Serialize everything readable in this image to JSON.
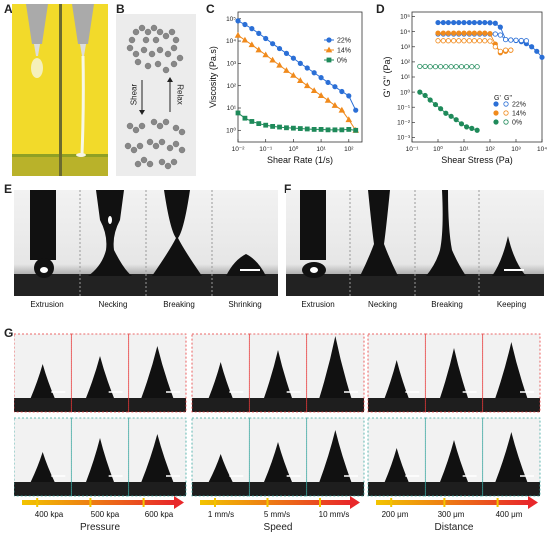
{
  "panels": {
    "a": "A",
    "b": "B",
    "c": "C",
    "d": "D",
    "e": "E",
    "f": "F",
    "g": "G"
  },
  "panel_b": {
    "top_label": "Shear",
    "right_label": "Relax"
  },
  "panel_e": {
    "captions": [
      "Extrusion",
      "Necking",
      "Breaking",
      "Shrinking"
    ]
  },
  "panel_f": {
    "captions": [
      "Extrusion",
      "Necking",
      "Breaking",
      "Keeping"
    ]
  },
  "panel_g": {
    "groups": [
      {
        "name": "Pressure",
        "ticks": [
          "400 kpa",
          "500 kpa",
          "600 kpa"
        ]
      },
      {
        "name": "Speed",
        "ticks": [
          "1 mm/s",
          "5 mm/s",
          "10 mm/s"
        ]
      },
      {
        "name": "Distance",
        "ticks": [
          "200 μm",
          "300 μm",
          "400 μm"
        ]
      }
    ],
    "colors": {
      "red": "#e83a3a",
      "teal": "#3aa7a0",
      "arrow_start": "#f2c400",
      "arrow_end": "#e8282a"
    }
  },
  "chart_data": [
    {
      "type": "line",
      "xlabel": "Shear Rate (1/s)",
      "ylabel": "Viscosity (Pa.s)",
      "xscale": "log",
      "yscale": "log",
      "xlim": [
        0.01,
        300
      ],
      "ylim": [
        0.3,
        200000
      ],
      "xticks": [
        "10⁻²",
        "10⁻¹",
        "10⁰",
        "10¹",
        "10²"
      ],
      "yticks": [
        "10⁰",
        "10¹",
        "10²",
        "10³",
        "10⁴",
        "10⁵"
      ],
      "legend": "top-right",
      "series": [
        {
          "name": "22%",
          "color": "#2b6fd6",
          "marker": "circle",
          "x": [
            0.01,
            0.0178,
            0.0316,
            0.0562,
            0.1,
            0.178,
            0.316,
            0.562,
            1,
            1.78,
            3.16,
            5.62,
            10,
            17.8,
            31.6,
            56.2,
            100,
            178
          ],
          "y": [
            80000,
            55000,
            36000,
            22000,
            13000,
            7600,
            4600,
            2800,
            1700,
            1000,
            620,
            380,
            230,
            140,
            90,
            55,
            35,
            8
          ]
        },
        {
          "name": "14%",
          "color": "#f08a1c",
          "marker": "triangle",
          "x": [
            0.01,
            0.0178,
            0.0316,
            0.0562,
            0.1,
            0.178,
            0.316,
            0.562,
            1,
            1.78,
            3.16,
            5.62,
            10,
            17.8,
            31.6,
            56.2,
            100,
            178
          ],
          "y": [
            18000,
            11000,
            6800,
            4000,
            2400,
            1400,
            820,
            480,
            290,
            170,
            100,
            60,
            36,
            22,
            13,
            8,
            3,
            1
          ]
        },
        {
          "name": "0%",
          "color": "#1f8a5a",
          "marker": "square",
          "x": [
            0.01,
            0.0178,
            0.0316,
            0.0562,
            0.1,
            0.178,
            0.316,
            0.562,
            1,
            1.78,
            3.16,
            5.62,
            10,
            17.8,
            31.6,
            56.2,
            100,
            178
          ],
          "y": [
            6,
            3.5,
            2.5,
            2,
            1.7,
            1.5,
            1.4,
            1.3,
            1.25,
            1.2,
            1.15,
            1.1,
            1.1,
            1.05,
            1.05,
            1.05,
            1.1,
            1
          ]
        }
      ]
    },
    {
      "type": "scatter",
      "xlabel": "Shear Stress (Pa)",
      "ylabel": "G' G\" (Pa)",
      "xscale": "log",
      "yscale": "log",
      "xlim": [
        0.1,
        10000
      ],
      "ylim": [
        0.0005,
        200000
      ],
      "xticks": [
        "10⁻¹",
        "10⁰",
        "10¹",
        "10²",
        "10³",
        "10⁴"
      ],
      "yticks": [
        "10⁻³",
        "10⁻²",
        "10⁻¹",
        "10⁰",
        "10¹",
        "10²",
        "10³",
        "10⁴",
        "10⁵"
      ],
      "legend": "bottom-right",
      "legend_header": [
        "G'",
        "G\""
      ],
      "series": [
        {
          "name": "22%",
          "color": "#2b6fd6",
          "gp_x": [
            1,
            1.6,
            2.5,
            4,
            6.3,
            10,
            16,
            25,
            40,
            63,
            100,
            160,
            250,
            400,
            630,
            1000,
            1600,
            2500,
            4000,
            6300,
            10000
          ],
          "gp_y": [
            40000,
            40000,
            40000,
            40000,
            40000,
            40000,
            40000,
            40000,
            40000,
            40000,
            39000,
            36000,
            20000,
            3000,
            2800,
            2600,
            2200,
            1600,
            1000,
            500,
            200
          ],
          "gpp_x": [
            1,
            1.6,
            2.5,
            4,
            6.3,
            10,
            16,
            25,
            40,
            63,
            100,
            160,
            250,
            400,
            630,
            1000,
            1600,
            2500
          ],
          "gpp_y": [
            7000,
            7000,
            7000,
            7000,
            7000,
            7000,
            7000,
            7000,
            7000,
            7000,
            7000,
            7000,
            6000,
            3000,
            2800,
            2700,
            2600,
            2500
          ]
        },
        {
          "name": "14%",
          "color": "#f08a1c",
          "gp_x": [
            1,
            1.6,
            2.5,
            4,
            6.3,
            10,
            16,
            25,
            40,
            63,
            100,
            160,
            250,
            400,
            630
          ],
          "gp_y": [
            8000,
            8000,
            8000,
            8000,
            8000,
            8000,
            8000,
            8000,
            8000,
            8000,
            7500,
            1500,
            400,
            500,
            600
          ],
          "gpp_x": [
            1,
            1.6,
            2.5,
            4,
            6.3,
            10,
            16,
            25,
            40,
            63,
            100,
            160,
            250,
            400,
            630
          ],
          "gpp_y": [
            2500,
            2500,
            2500,
            2500,
            2500,
            2500,
            2500,
            2500,
            2500,
            2500,
            2400,
            1000,
            500,
            600,
            600
          ]
        },
        {
          "name": "0%",
          "color": "#1f8a5a",
          "gp_x": [
            0.2,
            0.32,
            0.5,
            0.8,
            1.26,
            2,
            3.2,
            5,
            8,
            12.6,
            20,
            32
          ],
          "gp_y": [
            1,
            0.6,
            0.3,
            0.15,
            0.08,
            0.04,
            0.025,
            0.015,
            0.008,
            0.005,
            0.004,
            0.003
          ],
          "gpp_x": [
            0.2,
            0.32,
            0.5,
            0.8,
            1.26,
            2,
            3.2,
            5,
            8,
            12.6,
            20,
            32
          ],
          "gpp_y": [
            50,
            50,
            48,
            48,
            48,
            48,
            48,
            48,
            48,
            48,
            48,
            48
          ]
        }
      ]
    }
  ]
}
